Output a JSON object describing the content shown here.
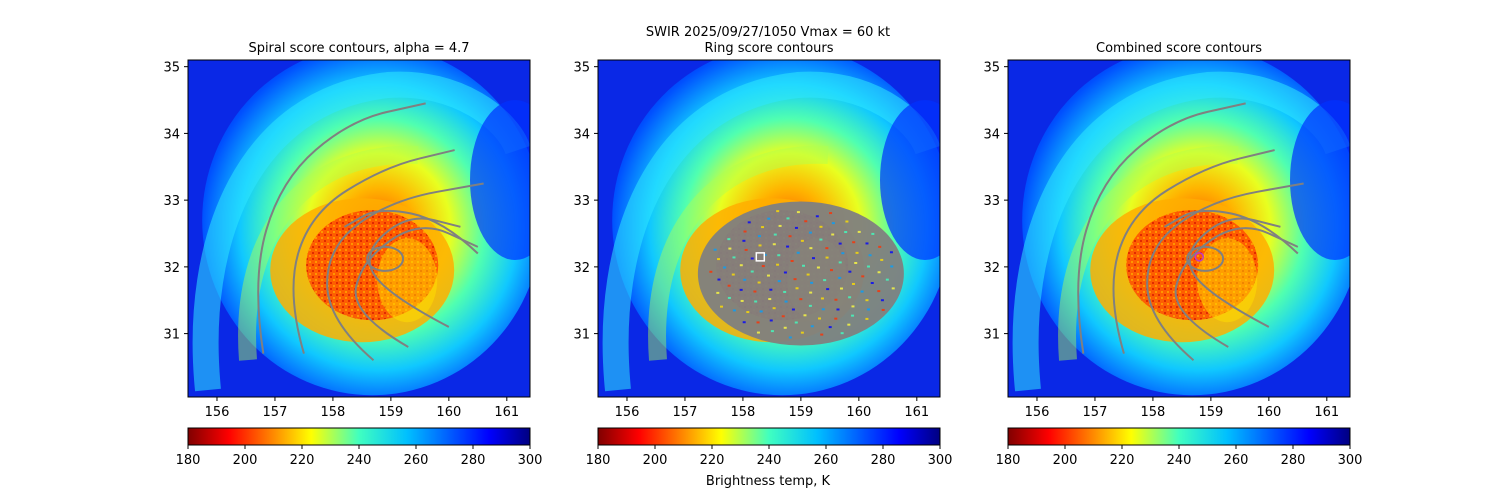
{
  "suptitle": "SWIR  2025/09/27/1050    Vmax = 60 kt",
  "colorbar_label": "Brightness temp, K",
  "chart_data": [
    {
      "type": "heatmap",
      "title": "Spiral score contours, alpha =  4.7",
      "xlim": [
        155.5,
        161.4
      ],
      "ylim": [
        30.05,
        35.1
      ],
      "xticks": [
        156,
        157,
        158,
        159,
        160,
        161
      ],
      "yticks": [
        31,
        32,
        33,
        34,
        35
      ],
      "colorbar": {
        "cmap": "jet_r",
        "range": [
          180,
          300
        ],
        "ticks": [
          180,
          200,
          220,
          240,
          260,
          280,
          300
        ]
      },
      "contour_color": "#808080",
      "overlay": "spiral"
    },
    {
      "type": "heatmap",
      "title": "Ring score contours",
      "xlim": [
        155.5,
        161.4
      ],
      "ylim": [
        30.05,
        35.1
      ],
      "xticks": [
        156,
        157,
        158,
        159,
        160,
        161
      ],
      "yticks": [
        31,
        32,
        33,
        34,
        35
      ],
      "colorbar": {
        "cmap": "jet_r",
        "range": [
          180,
          300
        ],
        "ticks": [
          180,
          200,
          220,
          240,
          260,
          280,
          300
        ]
      },
      "contour_color": "#808080",
      "overlay": "ring",
      "center_marker": {
        "x": 158.3,
        "y": 32.15,
        "shape": "square",
        "color": "#ffffff"
      }
    },
    {
      "type": "heatmap",
      "title": "Combined score contours",
      "xlim": [
        155.5,
        161.4
      ],
      "ylim": [
        30.05,
        35.1
      ],
      "xticks": [
        156,
        157,
        158,
        159,
        160,
        161
      ],
      "yticks": [
        31,
        32,
        33,
        34,
        35
      ],
      "colorbar": {
        "cmap": "jet_r",
        "range": [
          180,
          300
        ],
        "ticks": [
          180,
          200,
          220,
          240,
          260,
          280,
          300
        ]
      },
      "contour_color": "#808080",
      "overlay": "spiral",
      "center_marker": {
        "x": 158.8,
        "y": 32.15,
        "shape": "circle",
        "color": "#c03cc0"
      }
    }
  ]
}
